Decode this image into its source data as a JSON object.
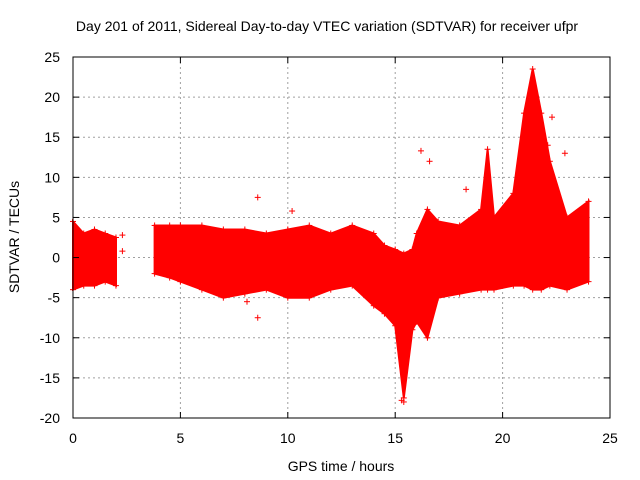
{
  "chart_data": {
    "type": "scatter",
    "title": "Day 201 of 2011, Sidereal Day-to-day VTEC variation (SDTVAR) for receiver ufpr",
    "xlabel": "GPS time / hours",
    "ylabel": "SDTVAR / TECUs",
    "xlim": [
      0,
      25
    ],
    "ylim": [
      -20,
      25
    ],
    "xticks": [
      0,
      5,
      10,
      15,
      20,
      25
    ],
    "yticks": [
      -20,
      -15,
      -10,
      -5,
      0,
      5,
      10,
      15,
      20,
      25
    ],
    "grid": true,
    "marker": "+",
    "color": "#ff0000",
    "series": [
      {
        "name": "SDTVAR",
        "envelope": [
          {
            "x": 0.0,
            "lo": -4.0,
            "hi": 4.5
          },
          {
            "x": 0.5,
            "lo": -3.5,
            "hi": 3.0
          },
          {
            "x": 1.0,
            "lo": -3.5,
            "hi": 3.5
          },
          {
            "x": 1.5,
            "lo": -3.0,
            "hi": 3.0
          },
          {
            "x": 2.0,
            "lo": -3.5,
            "hi": 2.5
          },
          {
            "x": 3.8,
            "lo": -2.0,
            "hi": 4.0
          },
          {
            "x": 4.5,
            "lo": -2.5,
            "hi": 4.0
          },
          {
            "x": 5.0,
            "lo": -3.0,
            "hi": 4.0
          },
          {
            "x": 6.0,
            "lo": -4.0,
            "hi": 4.0
          },
          {
            "x": 7.0,
            "lo": -5.0,
            "hi": 3.5
          },
          {
            "x": 8.0,
            "lo": -4.5,
            "hi": 3.5
          },
          {
            "x": 9.0,
            "lo": -4.0,
            "hi": 3.0
          },
          {
            "x": 10.0,
            "lo": -5.0,
            "hi": 3.5
          },
          {
            "x": 11.0,
            "lo": -5.0,
            "hi": 4.0
          },
          {
            "x": 12.0,
            "lo": -4.0,
            "hi": 3.0
          },
          {
            "x": 13.0,
            "lo": -3.5,
            "hi": 4.0
          },
          {
            "x": 14.0,
            "lo": -6.0,
            "hi": 3.0
          },
          {
            "x": 14.5,
            "lo": -7.0,
            "hi": 1.5
          },
          {
            "x": 15.0,
            "lo": -8.5,
            "hi": 1.0
          },
          {
            "x": 15.4,
            "lo": -17.5,
            "hi": 0.5
          },
          {
            "x": 15.8,
            "lo": -9.0,
            "hi": 1.0
          },
          {
            "x": 16.0,
            "lo": -8.0,
            "hi": 3.0
          },
          {
            "x": 16.5,
            "lo": -10.0,
            "hi": 6.0
          },
          {
            "x": 17.0,
            "lo": -5.0,
            "hi": 4.5
          },
          {
            "x": 18.0,
            "lo": -4.5,
            "hi": 4.0
          },
          {
            "x": 19.0,
            "lo": -4.0,
            "hi": 6.0
          },
          {
            "x": 19.3,
            "lo": -4.0,
            "hi": 13.5
          },
          {
            "x": 19.6,
            "lo": -4.0,
            "hi": 5.0
          },
          {
            "x": 20.5,
            "lo": -3.5,
            "hi": 8.0
          },
          {
            "x": 21.0,
            "lo": -3.5,
            "hi": 18.0
          },
          {
            "x": 21.4,
            "lo": -4.0,
            "hi": 23.5
          },
          {
            "x": 21.8,
            "lo": -4.0,
            "hi": 18.0
          },
          {
            "x": 22.2,
            "lo": -3.5,
            "hi": 12.0
          },
          {
            "x": 23.0,
            "lo": -4.0,
            "hi": 5.0
          },
          {
            "x": 24.0,
            "lo": -3.0,
            "hi": 7.0
          }
        ],
        "outliers": [
          {
            "x": 2.3,
            "y": 2.8
          },
          {
            "x": 2.3,
            "y": 0.8
          },
          {
            "x": 8.1,
            "y": -5.5
          },
          {
            "x": 8.6,
            "y": -7.5
          },
          {
            "x": 8.6,
            "y": 7.5
          },
          {
            "x": 10.2,
            "y": 5.8
          },
          {
            "x": 16.2,
            "y": 13.3
          },
          {
            "x": 16.6,
            "y": 12.0
          },
          {
            "x": 15.3,
            "y": -17.8
          },
          {
            "x": 15.4,
            "y": -18.0
          },
          {
            "x": 18.3,
            "y": 8.5
          },
          {
            "x": 22.3,
            "y": 17.5
          },
          {
            "x": 22.1,
            "y": 14.0
          },
          {
            "x": 22.9,
            "y": 13.0
          }
        ]
      }
    ]
  }
}
